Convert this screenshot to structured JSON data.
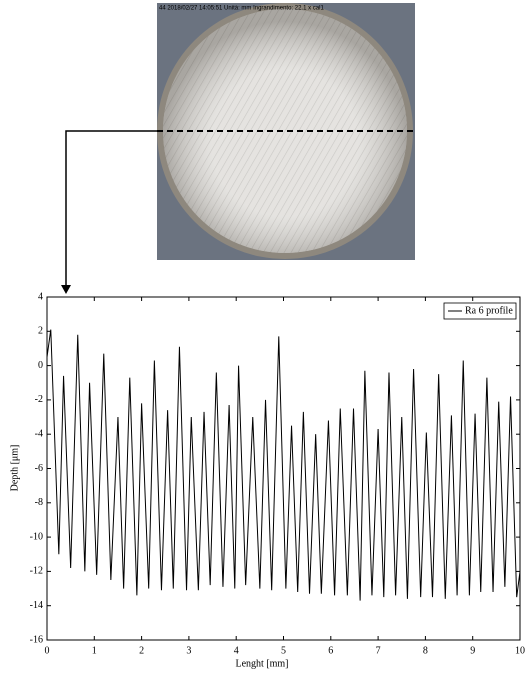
{
  "photo": {
    "caption": "44  2018/02/27 14:05:51  Unità: mm  Ingrandimento: 22.1 x  cal1"
  },
  "chart_data": {
    "type": "line",
    "xlabel": "Lenght [mm]",
    "ylabel": "Depth [μm]",
    "xlim": [
      0,
      10
    ],
    "ylim": [
      -16,
      4
    ],
    "xticks": [
      0,
      1,
      2,
      3,
      4,
      5,
      6,
      7,
      8,
      9,
      10
    ],
    "yticks": [
      -16,
      -14,
      -12,
      -10,
      -8,
      -6,
      -4,
      -2,
      0,
      2,
      4
    ],
    "legend": "upper right",
    "x": [
      0,
      0.08,
      0.25,
      0.35,
      0.5,
      0.65,
      0.8,
      0.9,
      1.05,
      1.2,
      1.35,
      1.5,
      1.62,
      1.75,
      1.9,
      2.0,
      2.15,
      2.27,
      2.42,
      2.55,
      2.67,
      2.8,
      2.95,
      3.05,
      3.2,
      3.32,
      3.45,
      3.58,
      3.72,
      3.85,
      3.97,
      4.05,
      4.2,
      4.35,
      4.5,
      4.62,
      4.75,
      4.9,
      5.05,
      5.17,
      5.3,
      5.42,
      5.55,
      5.68,
      5.8,
      5.95,
      6.08,
      6.2,
      6.35,
      6.48,
      6.62,
      6.72,
      6.87,
      7.0,
      7.12,
      7.23,
      7.37,
      7.5,
      7.62,
      7.75,
      7.9,
      8.02,
      8.15,
      8.28,
      8.42,
      8.55,
      8.67,
      8.8,
      8.93,
      9.05,
      9.17,
      9.3,
      9.43,
      9.55,
      9.68,
      9.8,
      9.93,
      10
    ],
    "series": [
      {
        "name": "Ra 6 profile",
        "color": "#000000",
        "values": [
          0.5,
          2.1,
          -11,
          -0.6,
          -11.8,
          1.8,
          -12,
          -1,
          -12.2,
          0.7,
          -12.5,
          -3,
          -13,
          -0.7,
          -13.4,
          -2.2,
          -13,
          0.3,
          -13.1,
          -2.6,
          -13,
          1.1,
          -13.1,
          -3,
          -13.1,
          -2.7,
          -12.8,
          -0.4,
          -12.9,
          -2.3,
          -13,
          0,
          -12.8,
          -3,
          -13,
          -2,
          -13.1,
          1.7,
          -13,
          -3.5,
          -13.2,
          -2.7,
          -13.3,
          -4,
          -13.3,
          -3.2,
          -13.4,
          -2.5,
          -13.4,
          -2.5,
          -13.7,
          -0.3,
          -13.4,
          -3.7,
          -13.5,
          -0.4,
          -13.4,
          -3,
          -13.6,
          -0.2,
          -13.5,
          -3.9,
          -13.5,
          -0.5,
          -13.6,
          -2.9,
          -13.4,
          0.3,
          -13.4,
          -2.8,
          -13.2,
          -0.7,
          -13.2,
          -2.1,
          -12.9,
          -1.8,
          -13.5,
          -12
        ]
      }
    ]
  }
}
